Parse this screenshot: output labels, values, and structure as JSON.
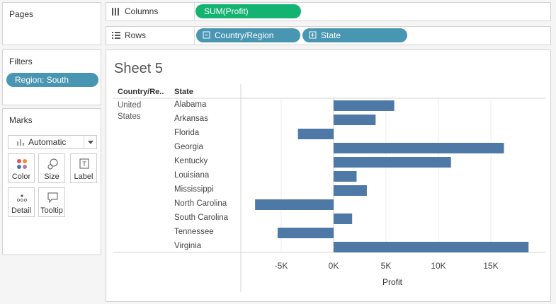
{
  "panels": {
    "pages_title": "Pages",
    "filters_title": "Filters",
    "marks_title": "Marks"
  },
  "filters": [
    {
      "label": "Region: South"
    }
  ],
  "marks": {
    "type": "Automatic",
    "buttons": {
      "color": "Color",
      "size": "Size",
      "label": "Label",
      "detail": "Detail",
      "tooltip": "Tooltip"
    }
  },
  "shelves": {
    "columns_label": "Columns",
    "rows_label": "Rows",
    "columns_pills": [
      {
        "label": "SUM(Profit)"
      }
    ],
    "rows_pills": [
      {
        "label": "Country/Region"
      },
      {
        "label": "State"
      }
    ]
  },
  "sheet": {
    "title": "Sheet 5",
    "header_country": "Country/Re..",
    "header_state": "State",
    "country_line1": "United",
    "country_line2": "States"
  },
  "colors": {
    "bar": "#4e79a7",
    "blue_pill": "#4996b2",
    "green_pill": "#15b371"
  },
  "chart_data": {
    "type": "bar",
    "orientation": "horizontal",
    "categories": [
      "Alabama",
      "Arkansas",
      "Florida",
      "Georgia",
      "Kentucky",
      "Louisiana",
      "Mississippi",
      "North Carolina",
      "South Carolina",
      "Tennessee",
      "Virginia"
    ],
    "values": [
      5787,
      4009,
      -3399,
      16250,
      11200,
      2196,
      3172,
      -7491,
      1769,
      -5342,
      18598
    ],
    "xlabel": "Profit",
    "ylabel": "",
    "xlim": [
      -8500,
      19000
    ],
    "ticks": [
      -5000,
      0,
      5000,
      10000,
      15000
    ],
    "tick_labels": [
      "-5K",
      "0K",
      "5K",
      "10K",
      "15K"
    ],
    "grid": "vertical"
  }
}
